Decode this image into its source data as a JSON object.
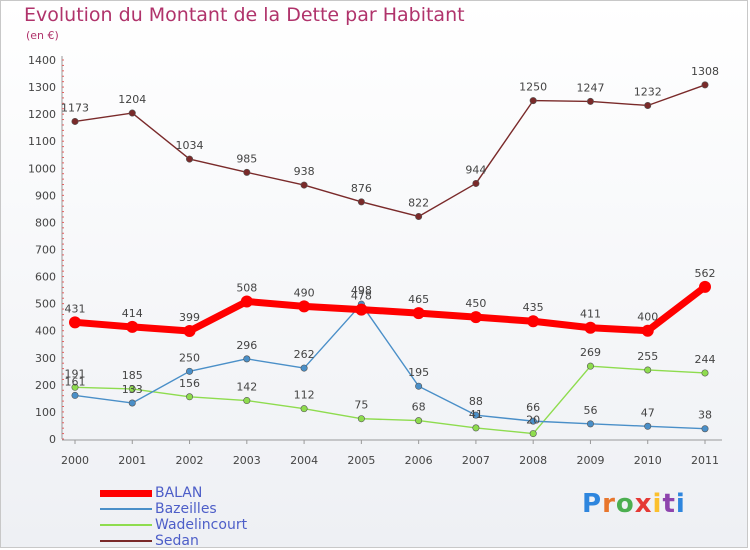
{
  "chart_data": {
    "type": "line",
    "title": "Evolution du Montant de la Dette par Habitant",
    "subtitle": "(en €)",
    "x": [
      "2000",
      "2001",
      "2002",
      "2003",
      "2004",
      "2005",
      "2006",
      "2007",
      "2008",
      "2009",
      "2010",
      "2011"
    ],
    "ylim": [
      0,
      1400
    ],
    "yticks": [
      0,
      100,
      200,
      300,
      400,
      500,
      600,
      700,
      800,
      900,
      1000,
      1100,
      1200,
      1300,
      1400
    ],
    "grid": false,
    "legend_position": "bottom-left",
    "series": [
      {
        "name": "BALAN",
        "color": "#ff0000",
        "values": [
          431,
          414,
          399,
          508,
          490,
          478,
          465,
          450,
          435,
          411,
          400,
          562
        ],
        "labels": [
          "431",
          "414",
          "399",
          "508",
          "490",
          "478",
          "465",
          "450",
          "435",
          "411",
          "400",
          "562"
        ]
      },
      {
        "name": "Bazeilles",
        "color": "#4a8fc8",
        "values": [
          161,
          133,
          250,
          296,
          262,
          498,
          195,
          88,
          66,
          56,
          47,
          38
        ],
        "labels": [
          "161",
          "133",
          "250",
          "296",
          "262",
          "498",
          "195",
          "88",
          "66",
          "56",
          "47",
          "38"
        ]
      },
      {
        "name": "Wadelincourt",
        "color": "#8edc4e",
        "values": [
          191,
          185,
          156,
          142,
          112,
          75,
          68,
          41,
          20,
          269,
          255,
          244
        ],
        "labels": [
          "191",
          "185",
          "156",
          "142",
          "112",
          "75",
          "68",
          "41",
          "20",
          "269",
          "255",
          "244"
        ]
      },
      {
        "name": "Sedan",
        "color": "#7a2a2a",
        "values": [
          1173,
          1204,
          1034,
          985,
          938,
          876,
          822,
          944,
          1250,
          1247,
          1232,
          1308
        ],
        "labels": [
          "1173",
          "1204",
          "1034",
          "985",
          "938",
          "876",
          "822",
          "944",
          "1250",
          "1247",
          "1232",
          "1308"
        ]
      }
    ]
  },
  "logo": {
    "letters": [
      "P",
      "r",
      "o",
      "x",
      "i",
      "t",
      "i"
    ],
    "colors": [
      "#2e86de",
      "#e8762c",
      "#4caf50",
      "#e53935",
      "#fbc02d",
      "#8e44ad",
      "#2e86de"
    ]
  }
}
